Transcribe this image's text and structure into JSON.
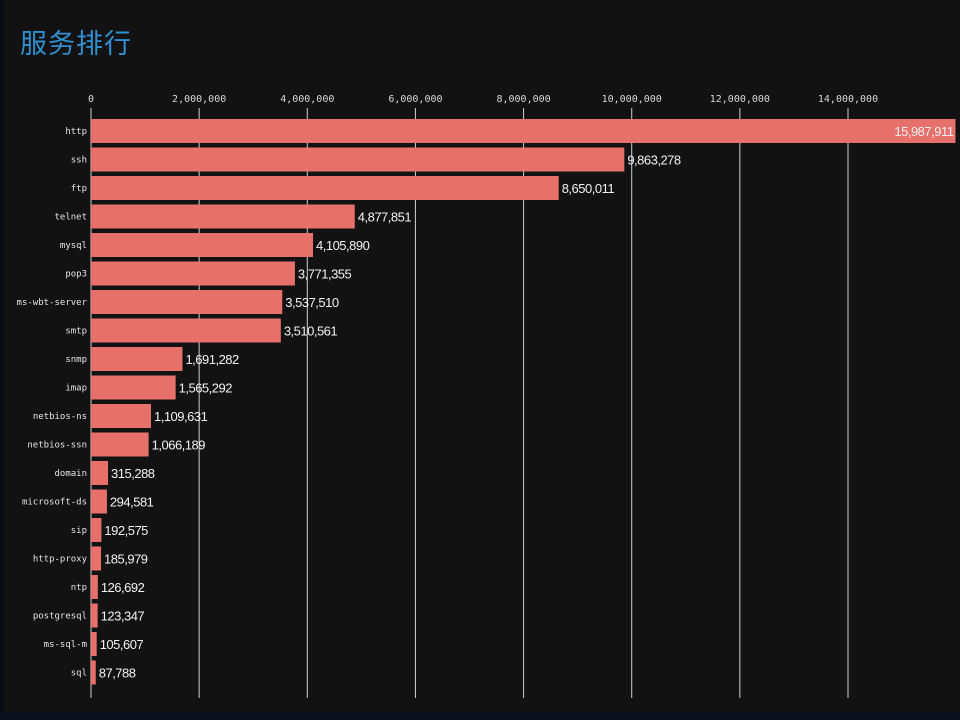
{
  "title": "服务排行",
  "colors": {
    "bar": "#e8706b",
    "title": "#2f8fd0",
    "grid": "#cfcfcf",
    "background": "#121212"
  },
  "chart_data": {
    "type": "bar",
    "orientation": "horizontal",
    "title": "服务排行",
    "xlabel": "",
    "ylabel": "",
    "xlim": [
      0,
      16000000
    ],
    "xticks": [
      0,
      2000000,
      4000000,
      6000000,
      8000000,
      10000000,
      12000000,
      14000000
    ],
    "xtick_labels": [
      "0",
      "2,000,000",
      "4,000,000",
      "6,000,000",
      "8,000,000",
      "10,000,000",
      "12,000,000",
      "14,000,000"
    ],
    "xaxis_position": "top",
    "grid": true,
    "legend": "none",
    "categories": [
      "http",
      "ssh",
      "ftp",
      "telnet",
      "mysql",
      "pop3",
      "ms-wbt-server",
      "smtp",
      "snmp",
      "imap",
      "netbios-ns",
      "netbios-ssn",
      "domain",
      "microsoft-ds",
      "sip",
      "http-proxy",
      "ntp",
      "postgresql",
      "ms-sql-m",
      "sql"
    ],
    "values": [
      15987911,
      9863278,
      8650011,
      4877851,
      4105890,
      3771355,
      3537510,
      3510561,
      1691282,
      1565292,
      1109631,
      1066189,
      315288,
      294581,
      192575,
      185979,
      126692,
      123347,
      105607,
      87788
    ],
    "value_labels": [
      "15,987,911",
      "9,863,278",
      "8,650,011",
      "4,877,851",
      "4,105,890",
      "3,771,355",
      "3,537,510",
      "3,510,561",
      "1,691,282",
      "1,565,292",
      "1,109,631",
      "1,066,189",
      "315,288",
      "294,581",
      "192,575",
      "185,979",
      "126,692",
      "123,347",
      "105,607",
      "87,788"
    ]
  }
}
